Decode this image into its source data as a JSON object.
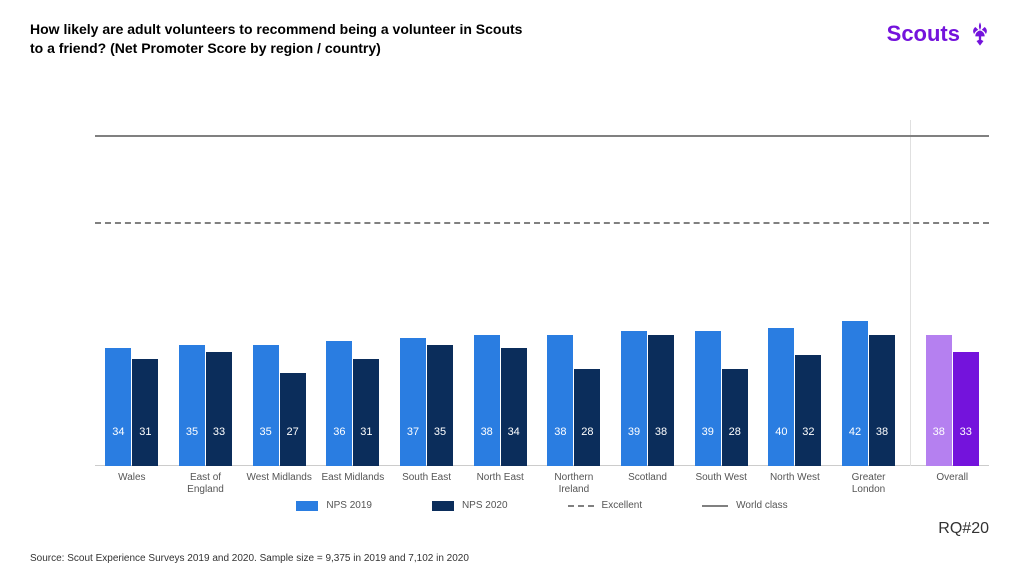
{
  "title": "How likely are adult volunteers to recommend being a volunteer in Scouts to a friend? (Net Promoter Score by region / country)",
  "logo_text": "Scouts",
  "brand_color": "#7413dc",
  "chart": {
    "type": "bar",
    "y_top_value": 100,
    "reference_lines": [
      {
        "label": "World class",
        "value": 95,
        "style": "solid",
        "color": "#808080"
      },
      {
        "label": "Excellent",
        "value": 70,
        "style": "dashed",
        "color": "#808080"
      }
    ],
    "series": [
      {
        "key": "nps2019",
        "label": "NPS 2019",
        "color": "#2a7de1"
      },
      {
        "key": "nps2020",
        "label": "NPS 2020",
        "color": "#0b2d5b"
      }
    ],
    "overall_colors": {
      "nps2019": "#b580f0",
      "nps2020": "#7413dc"
    },
    "categories": [
      {
        "label": "Wales",
        "nps2019": 34,
        "nps2020": 31
      },
      {
        "label": "East of\nEngland",
        "nps2019": 35,
        "nps2020": 33
      },
      {
        "label": "West Midlands",
        "nps2019": 35,
        "nps2020": 27
      },
      {
        "label": "East Midlands",
        "nps2019": 36,
        "nps2020": 31
      },
      {
        "label": "South East",
        "nps2019": 37,
        "nps2020": 35
      },
      {
        "label": "North East",
        "nps2019": 38,
        "nps2020": 34
      },
      {
        "label": "Northern\nIreland",
        "nps2019": 38,
        "nps2020": 28
      },
      {
        "label": "Scotland",
        "nps2019": 39,
        "nps2020": 38
      },
      {
        "label": "South West",
        "nps2019": 39,
        "nps2020": 28
      },
      {
        "label": "North West",
        "nps2019": 40,
        "nps2020": 32
      },
      {
        "label": "Greater\nLondon",
        "nps2019": 42,
        "nps2020": 38
      }
    ],
    "overall": {
      "label": "Overall",
      "nps2019": 38,
      "nps2020": 33
    }
  },
  "legend": {
    "nps2019": "NPS 2019",
    "nps2020": "NPS 2020",
    "excellent": "Excellent",
    "worldclass": "World class"
  },
  "source": "Source: Scout Experience Surveys 2019 and 2020. Sample size = 9,375  in 2019 and 7,102 in 2020",
  "rq": "RQ#20"
}
